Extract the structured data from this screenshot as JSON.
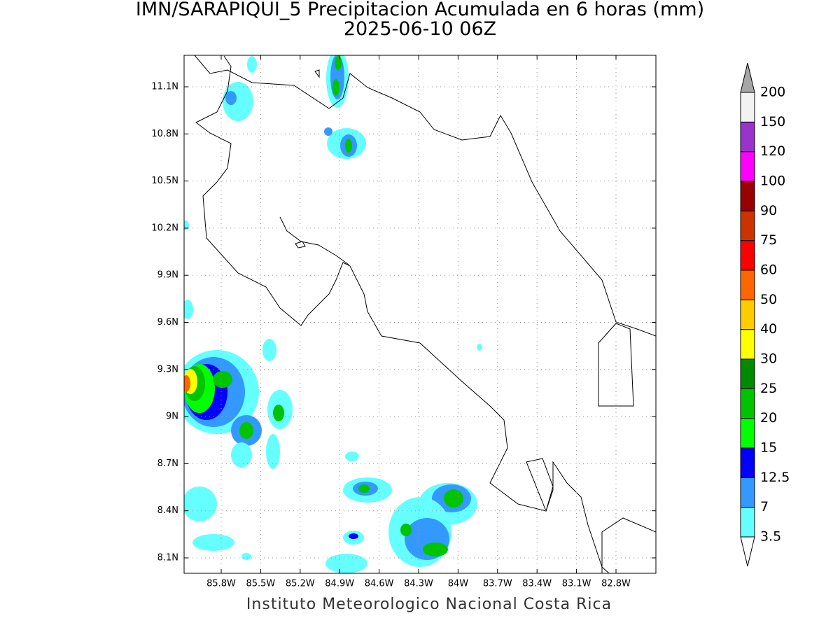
{
  "map": {
    "title": "IMN/SARAPIQUI_5 Precipitacion Acumulada en 6 horas (mm)",
    "subtitle": "2025-06-10 06Z",
    "footer": "Instituto Meteorologico Nacional Costa Rica",
    "lat_ticks": [
      "11.1N",
      "10.8N",
      "10.5N",
      "10.2N",
      "9.9N",
      "9.6N",
      "9.3N",
      "9N",
      "8.7N",
      "8.4N",
      "8.1N"
    ],
    "lon_ticks": [
      "85.8W",
      "85.5W",
      "85.2W",
      "84.9W",
      "84.6W",
      "84.3W",
      "84W",
      "83.7W",
      "83.4W",
      "83.1W",
      "82.8W"
    ],
    "colorbar": {
      "labels": [
        "3.5",
        "7",
        "12.5",
        "15",
        "20",
        "25",
        "30",
        "40",
        "50",
        "60",
        "75",
        "90",
        "100",
        "120",
        "150",
        "200"
      ],
      "colors": [
        "#66ffff",
        "#3399ff",
        "#0000ff",
        "#00ff00",
        "#00c400",
        "#008a00",
        "#ffff00",
        "#ffcc00",
        "#ff6600",
        "#ff0000",
        "#cc3300",
        "#990000",
        "#ff00ff",
        "#9933cc",
        "#f2f2f2"
      ],
      "below_color": "#ffffff",
      "above_color": "#a6a6a6"
    }
  }
}
